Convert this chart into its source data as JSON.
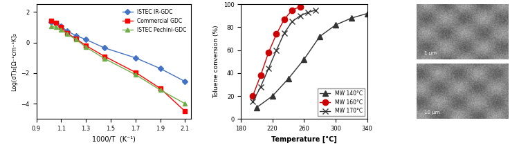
{
  "left_plot": {
    "xlabel": "1000/T  (K⁻¹)",
    "ylabel": "Log(σT)₂[Ω⁻¹cm⁻¹K]₂",
    "xlim": [
      0.9,
      2.15
    ],
    "ylim": [
      -5,
      2.5
    ],
    "yticks": [
      -4,
      -2,
      0,
      2
    ],
    "xticks": [
      0.9,
      1.1,
      1.3,
      1.5,
      1.7,
      1.9,
      2.1
    ],
    "series": [
      {
        "label": "ISTEC IR-GDC",
        "color": "#4472C4",
        "marker": "D",
        "markersize": 4,
        "x": [
          1.02,
          1.06,
          1.1,
          1.15,
          1.22,
          1.3,
          1.45,
          1.7,
          1.9,
          2.1
        ],
        "y": [
          1.35,
          1.25,
          1.05,
          0.75,
          0.45,
          0.2,
          -0.35,
          -1.0,
          -1.7,
          -2.55
        ]
      },
      {
        "label": "Commercial GDC",
        "color": "#FF0000",
        "marker": "s",
        "markersize": 4,
        "x": [
          1.02,
          1.06,
          1.1,
          1.15,
          1.22,
          1.3,
          1.45,
          1.7,
          1.9,
          2.1
        ],
        "y": [
          1.45,
          1.3,
          1.0,
          0.6,
          0.25,
          -0.2,
          -0.9,
          -1.95,
          -3.0,
          -4.5
        ]
      },
      {
        "label": "ISTEC Pechini-GDC",
        "color": "#70AD47",
        "marker": "^",
        "markersize": 5,
        "x": [
          1.02,
          1.06,
          1.1,
          1.15,
          1.22,
          1.3,
          1.45,
          1.7,
          1.9,
          2.1
        ],
        "y": [
          1.05,
          1.0,
          0.85,
          0.55,
          0.2,
          -0.3,
          -1.05,
          -2.1,
          -3.1,
          -4.0
        ]
      }
    ]
  },
  "right_plot": {
    "xlabel": "Temperature [°C]",
    "ylabel": "Toluene conversion (%)",
    "xlim": [
      180,
      340
    ],
    "ylim": [
      0,
      100
    ],
    "yticks": [
      0,
      20,
      40,
      60,
      80,
      100
    ],
    "xticks": [
      180,
      220,
      260,
      300,
      340
    ],
    "series": [
      {
        "label": "MW 140°C",
        "color": "#333333",
        "marker": "^",
        "markersize": 6,
        "x": [
          200,
          220,
          240,
          260,
          280,
          300,
          320,
          340
        ],
        "y": [
          10,
          20,
          35,
          52,
          72,
          82,
          88,
          92
        ]
      },
      {
        "label": "MW 160°C",
        "color": "#CC0000",
        "marker": "o",
        "markersize": 6,
        "x": [
          195,
          205,
          215,
          225,
          235,
          245,
          255
        ],
        "y": [
          20,
          38,
          58,
          74,
          87,
          95,
          98
        ]
      },
      {
        "label": "MW 170°C",
        "color": "#333333",
        "marker": "x",
        "markersize": 6,
        "x": [
          195,
          205,
          215,
          225,
          235,
          245,
          255,
          265,
          275
        ],
        "y": [
          15,
          28,
          44,
          60,
          75,
          85,
          90,
          93,
          95
        ]
      }
    ]
  }
}
